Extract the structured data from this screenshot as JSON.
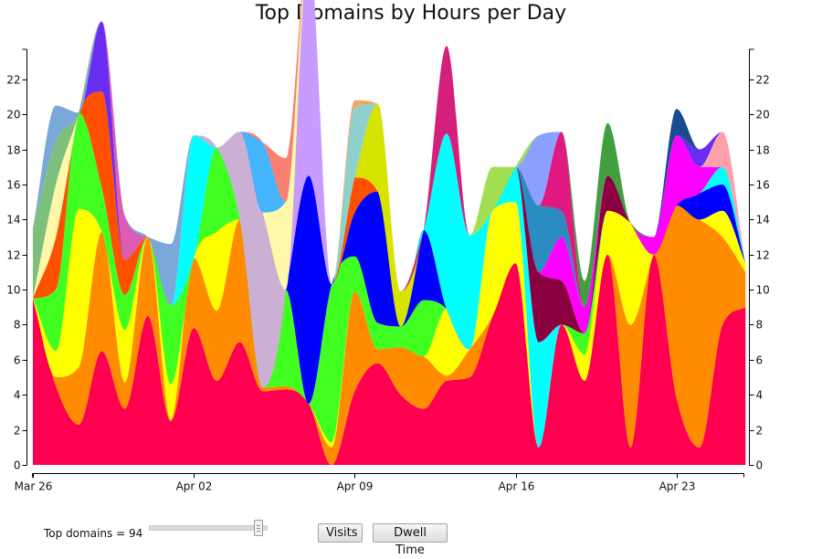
{
  "chart_data": {
    "type": "area",
    "title": "Top Domains by Hours per Day",
    "xlabel": "",
    "ylabel": "",
    "x_ticks": [
      "Mar 26",
      "Apr 02",
      "Apr 09",
      "Apr 16",
      "Apr 23"
    ],
    "x_range": [
      "Mar 26",
      "Apr 28"
    ],
    "y_ticks": [
      0,
      2,
      4,
      6,
      8,
      10,
      12,
      14,
      16,
      18,
      20,
      22
    ],
    "ylim": [
      0,
      23.5
    ],
    "y_axis_right": true,
    "grid": false,
    "legend": "none",
    "interpolation": "smooth",
    "x": [
      "Mar 26",
      "Mar 27",
      "Mar 28",
      "Mar 29",
      "Mar 30",
      "Mar 31",
      "Apr 01",
      "Apr 02",
      "Apr 03",
      "Apr 04",
      "Apr 05",
      "Apr 06",
      "Apr 07",
      "Apr 08",
      "Apr 09",
      "Apr 10",
      "Apr 11",
      "Apr 12",
      "Apr 13",
      "Apr 14",
      "Apr 15",
      "Apr 16",
      "Apr 17",
      "Apr 18",
      "Apr 19",
      "Apr 20",
      "Apr 21",
      "Apr 22",
      "Apr 23",
      "Apr 24",
      "Apr 25",
      "Apr 26"
    ],
    "series": [
      {
        "color": "#ff0050",
        "values": [
          9.5,
          4.5,
          2.3,
          6.5,
          3.2,
          8.5,
          2.5,
          7.8,
          4.8,
          7.0,
          4.2,
          4.3,
          3.5,
          0.0,
          4.2,
          5.8,
          4.0,
          3.2,
          4.8,
          5.0,
          8.5,
          11.5,
          1.0,
          8.0,
          4.8,
          12.0,
          1.0,
          12.0,
          3.8,
          1.0,
          8.0,
          9.0
        ]
      },
      {
        "color": "#ff8c00",
        "values": [
          0.0,
          0.5,
          3.3,
          6.8,
          1.5,
          4.5,
          0.1,
          4.0,
          4.0,
          7.0,
          0.2,
          0.2,
          0.0,
          1.0,
          5.7,
          0.8,
          2.7,
          3.0,
          0.3,
          1.6,
          0.0,
          0.0,
          0.0,
          0.0,
          0.0,
          0.0,
          7.0,
          0.0,
          11.0,
          13.0,
          5.0,
          2.0
        ]
      },
      {
        "color": "#ffff00",
        "values": [
          0.0,
          1.5,
          9.0,
          0.0,
          3.0,
          0.0,
          2.0,
          0.0,
          4.5,
          0.0,
          0.0,
          0.0,
          0.0,
          0.3,
          0.0,
          0.0,
          0.0,
          0.0,
          3.8,
          0.0,
          6.0,
          3.5,
          0.0,
          0.0,
          1.5,
          2.5,
          5.8,
          0.0,
          0.0,
          0.0,
          1.5,
          0.5
        ]
      },
      {
        "color": "#40ff20",
        "values": [
          0.0,
          3.5,
          5.5,
          2.5,
          2.0,
          0.0,
          4.5,
          0.0,
          4.8,
          0.0,
          0.0,
          5.5,
          0.0,
          9.0,
          2.0,
          1.5,
          1.2,
          3.2,
          0.0,
          0.0,
          0.0,
          0.0,
          0.0,
          0.0,
          1.2,
          0.0,
          0.0,
          0.0,
          0.0,
          0.0,
          0.0,
          0.0
        ]
      },
      {
        "color": "#0000ff",
        "values": [
          0.0,
          0.0,
          0.0,
          0.0,
          0.0,
          0.0,
          0.0,
          0.0,
          0.0,
          0.0,
          0.0,
          0.0,
          13.0,
          0.0,
          2.5,
          7.5,
          0.0,
          4.0,
          0.0,
          0.0,
          0.0,
          0.0,
          0.0,
          0.0,
          0.0,
          0.0,
          0.0,
          0.0,
          0.0,
          1.5,
          1.5,
          0.0
        ]
      },
      {
        "color": "#00ffff",
        "values": [
          0.0,
          0.0,
          0.0,
          0.0,
          0.0,
          0.0,
          0.0,
          7.0,
          0.0,
          0.0,
          0.0,
          0.0,
          0.0,
          0.0,
          0.0,
          0.0,
          0.0,
          0.0,
          10.0,
          6.5,
          0.0,
          2.0,
          6.0,
          0.0,
          0.0,
          0.0,
          0.0,
          0.0,
          0.0,
          0.0,
          1.0,
          0.0
        ]
      },
      {
        "color": "#c89cff",
        "values": [
          0.0,
          0.0,
          0.0,
          0.0,
          0.0,
          0.0,
          0.0,
          0.0,
          0.0,
          0.0,
          0.0,
          0.0,
          13.0,
          0.0,
          0.0,
          0.0,
          0.0,
          0.0,
          0.0,
          0.0,
          0.0,
          0.0,
          0.0,
          0.0,
          0.0,
          0.0,
          0.0,
          0.0,
          0.0,
          0.0,
          0.0,
          0.0
        ]
      },
      {
        "color": "#ccb0d4",
        "values": [
          0.0,
          0.0,
          0.0,
          0.0,
          0.0,
          0.0,
          0.0,
          0.0,
          0.0,
          5.0,
          10.0,
          0.0,
          0.0,
          0.0,
          0.0,
          0.0,
          0.0,
          0.0,
          0.0,
          0.0,
          0.0,
          0.0,
          0.0,
          0.0,
          0.0,
          0.0,
          0.0,
          0.0,
          0.0,
          0.0,
          0.0,
          0.0
        ]
      },
      {
        "color": "#8a0040",
        "values": [
          0.0,
          0.0,
          0.0,
          0.0,
          0.0,
          0.0,
          0.0,
          0.0,
          0.0,
          0.0,
          0.0,
          0.0,
          0.0,
          0.0,
          0.0,
          0.0,
          0.0,
          0.0,
          0.0,
          0.0,
          0.0,
          0.0,
          4.0,
          2.5,
          0.0,
          2.0,
          0.0,
          0.0,
          0.0,
          0.0,
          0.0,
          0.0
        ]
      },
      {
        "color": "#ff00ff",
        "values": [
          0.0,
          0.0,
          0.0,
          0.0,
          0.0,
          0.0,
          0.0,
          0.0,
          0.0,
          0.0,
          0.0,
          0.0,
          0.0,
          0.0,
          0.0,
          0.0,
          0.0,
          0.0,
          0.0,
          0.0,
          0.0,
          0.0,
          0.0,
          2.5,
          1.5,
          0.0,
          0.0,
          1.0,
          4.0,
          1.5,
          0.0,
          0.0
        ]
      },
      {
        "color": "#ffa0a8",
        "values": [
          0.0,
          0.0,
          0.0,
          0.0,
          0.0,
          0.0,
          0.0,
          0.0,
          0.0,
          0.0,
          0.0,
          0.0,
          0.0,
          0.0,
          0.0,
          0.0,
          0.0,
          0.0,
          0.0,
          0.0,
          0.0,
          0.0,
          0.0,
          0.0,
          0.0,
          0.0,
          0.0,
          0.0,
          0.0,
          0.0,
          2.0,
          0.0
        ]
      },
      {
        "color": "#2a8cc0",
        "values": [
          0.0,
          0.0,
          0.0,
          0.0,
          0.0,
          0.0,
          0.0,
          0.0,
          0.0,
          0.0,
          0.0,
          0.0,
          0.0,
          0.0,
          0.0,
          0.0,
          0.0,
          0.0,
          0.0,
          0.0,
          0.0,
          0.0,
          3.8,
          1.5,
          0.0,
          0.0,
          0.0,
          0.0,
          0.0,
          0.0,
          0.0,
          0.0
        ]
      },
      {
        "color": "#e01880",
        "values": [
          0.0,
          0.0,
          0.0,
          0.0,
          0.0,
          0.0,
          0.0,
          0.0,
          0.0,
          0.0,
          0.0,
          0.0,
          0.0,
          0.0,
          0.0,
          0.0,
          0.0,
          0.0,
          0.0,
          0.0,
          0.0,
          0.0,
          0.0,
          4.5,
          0.0,
          0.0,
          0.0,
          0.0,
          0.0,
          0.0,
          0.0,
          0.0
        ]
      },
      {
        "color": "#ff5000",
        "values": [
          0.0,
          3.0,
          0.0,
          5.5,
          2.0,
          0.0,
          0.0,
          0.0,
          0.0,
          0.0,
          0.0,
          0.0,
          0.0,
          0.0,
          2.0,
          0.0,
          0.0,
          0.0,
          0.0,
          0.0,
          0.0,
          0.0,
          0.0,
          0.0,
          0.0,
          0.0,
          0.0,
          0.0,
          0.0,
          0.0,
          0.0,
          0.0
        ]
      },
      {
        "color": "#6a2cf0",
        "values": [
          0.0,
          0.0,
          0.0,
          4.0,
          0.0,
          0.0,
          0.0,
          0.0,
          0.0,
          0.0,
          0.0,
          0.0,
          0.0,
          0.0,
          0.0,
          0.0,
          0.0,
          0.0,
          0.0,
          0.0,
          0.0,
          0.0,
          0.0,
          0.0,
          0.0,
          0.0,
          0.0,
          0.0,
          0.0,
          1.0,
          0.0,
          0.0
        ]
      },
      {
        "color": "#d6e400",
        "values": [
          0.0,
          0.0,
          0.0,
          0.0,
          0.0,
          0.0,
          0.0,
          0.0,
          0.0,
          0.0,
          0.0,
          0.0,
          0.0,
          0.0,
          0.0,
          5.0,
          2.0,
          0.0,
          0.0,
          0.0,
          0.0,
          0.0,
          0.0,
          0.0,
          0.0,
          0.0,
          0.0,
          0.0,
          0.0,
          0.0,
          0.0,
          0.0
        ]
      },
      {
        "color": "#d4207c",
        "values": [
          0.0,
          0.0,
          0.0,
          0.0,
          0.0,
          0.0,
          0.0,
          0.0,
          0.0,
          0.0,
          0.0,
          0.0,
          0.0,
          0.0,
          0.0,
          0.0,
          0.0,
          0.0,
          5.0,
          0.0,
          0.0,
          0.0,
          0.0,
          0.0,
          0.0,
          0.0,
          0.0,
          0.0,
          0.0,
          0.0,
          0.0,
          0.0
        ]
      },
      {
        "color": "#40a040",
        "values": [
          0.0,
          0.0,
          0.0,
          0.0,
          0.0,
          0.0,
          0.0,
          0.0,
          0.0,
          0.0,
          0.0,
          0.0,
          0.0,
          0.0,
          0.0,
          0.0,
          0.0,
          0.0,
          0.0,
          0.0,
          0.0,
          0.0,
          0.0,
          0.0,
          1.5,
          3.0,
          0.0,
          0.0,
          0.0,
          0.0,
          0.0,
          0.0
        ]
      },
      {
        "color": "#8ca0ff",
        "values": [
          0.0,
          0.0,
          0.0,
          0.0,
          0.0,
          0.0,
          0.0,
          0.0,
          0.0,
          0.0,
          0.0,
          0.0,
          0.0,
          0.0,
          0.0,
          0.0,
          0.0,
          0.0,
          0.0,
          0.0,
          0.0,
          0.0,
          4.0,
          0.0,
          0.0,
          0.0,
          0.0,
          0.0,
          0.0,
          0.0,
          0.0,
          0.0
        ]
      },
      {
        "color": "#dc5cb4",
        "values": [
          0.0,
          0.0,
          0.0,
          0.0,
          2.5,
          0.0,
          0.0,
          0.0,
          0.0,
          0.0,
          0.0,
          0.0,
          0.0,
          0.0,
          0.0,
          0.0,
          0.0,
          0.0,
          0.0,
          0.0,
          0.0,
          0.0,
          0.0,
          0.0,
          0.0,
          0.0,
          0.0,
          0.0,
          0.0,
          0.0,
          0.0,
          0.0
        ]
      },
      {
        "color": "#fff8a8",
        "values": [
          0.0,
          3.0,
          0.0,
          0.0,
          0.0,
          0.0,
          0.0,
          0.0,
          0.0,
          0.0,
          0.0,
          5.0,
          0.0,
          0.0,
          0.0,
          0.0,
          0.0,
          0.0,
          0.0,
          0.0,
          0.0,
          0.0,
          0.0,
          0.0,
          0.0,
          0.0,
          0.0,
          0.0,
          0.0,
          0.0,
          0.0,
          0.0
        ]
      },
      {
        "color": "#7cc07c",
        "values": [
          4.0,
          2.5,
          0.0,
          0.0,
          0.0,
          0.0,
          0.0,
          0.0,
          0.0,
          0.0,
          0.0,
          0.0,
          0.0,
          0.0,
          0.0,
          0.0,
          0.0,
          0.0,
          0.0,
          0.0,
          0.0,
          0.0,
          0.0,
          0.0,
          0.0,
          0.0,
          0.0,
          0.0,
          0.0,
          0.0,
          0.0,
          0.0
        ]
      },
      {
        "color": "#7aa8d8",
        "values": [
          0.0,
          2.0,
          0.0,
          0.0,
          0.0,
          0.0,
          3.5,
          0.0,
          0.0,
          0.0,
          0.0,
          0.0,
          0.0,
          0.0,
          0.0,
          0.0,
          0.0,
          0.0,
          0.0,
          0.0,
          0.0,
          0.0,
          0.0,
          0.0,
          0.0,
          0.0,
          0.0,
          0.0,
          0.0,
          0.0,
          0.0,
          0.0
        ]
      },
      {
        "color": "#1a4a90",
        "values": [
          0.0,
          0.0,
          0.0,
          0.0,
          0.0,
          0.0,
          0.0,
          0.0,
          0.0,
          0.0,
          0.0,
          0.0,
          0.0,
          0.0,
          0.0,
          0.0,
          0.0,
          0.0,
          0.0,
          0.0,
          0.0,
          0.0,
          0.0,
          0.0,
          0.0,
          0.0,
          0.0,
          0.0,
          1.5,
          0.0,
          0.0,
          0.0
        ]
      },
      {
        "color": "#a0e050",
        "values": [
          0.0,
          0.0,
          0.0,
          0.0,
          0.0,
          0.0,
          0.0,
          0.0,
          0.0,
          0.0,
          0.0,
          0.0,
          0.0,
          0.0,
          0.0,
          0.0,
          0.0,
          0.0,
          0.0,
          0.0,
          2.5,
          0.0,
          0.0,
          0.0,
          0.0,
          0.0,
          0.0,
          0.0,
          0.0,
          0.0,
          0.0,
          0.0
        ]
      },
      {
        "color": "#44b4ff",
        "values": [
          0.0,
          0.0,
          0.0,
          0.0,
          0.0,
          0.0,
          0.0,
          0.0,
          0.0,
          0.0,
          4.0,
          0.0,
          0.0,
          0.0,
          0.0,
          0.0,
          0.0,
          0.0,
          0.0,
          0.0,
          0.0,
          0.0,
          0.0,
          0.0,
          0.0,
          0.0,
          0.0,
          0.0,
          0.0,
          0.0,
          0.0,
          0.0
        ]
      },
      {
        "color": "#8ed0cc",
        "values": [
          0.0,
          0.0,
          0.0,
          0.0,
          0.0,
          0.0,
          0.0,
          0.0,
          0.0,
          0.0,
          0.0,
          0.0,
          0.0,
          0.0,
          4.0,
          0.0,
          0.0,
          0.0,
          0.0,
          0.0,
          0.0,
          0.0,
          0.0,
          0.0,
          0.0,
          0.0,
          0.0,
          0.0,
          0.0,
          0.0,
          0.0,
          0.0
        ]
      },
      {
        "color": "#fa8072",
        "values": [
          0.0,
          0.0,
          0.0,
          0.0,
          0.0,
          0.0,
          0.0,
          0.0,
          0.0,
          0.0,
          0.0,
          2.5,
          0.0,
          0.0,
          0.0,
          0.0,
          0.0,
          0.0,
          0.0,
          0.0,
          0.0,
          0.0,
          0.0,
          0.0,
          0.0,
          0.0,
          0.0,
          0.0,
          0.0,
          0.0,
          0.0,
          0.0
        ]
      },
      {
        "color": "#f4a460",
        "values": [
          0.0,
          0.0,
          0.0,
          0.0,
          0.0,
          0.0,
          0.0,
          0.0,
          0.0,
          0.0,
          0.0,
          0.0,
          0.0,
          0.0,
          0.4,
          0.0,
          0.0,
          0.0,
          0.0,
          0.0,
          0.0,
          0.0,
          0.0,
          0.0,
          0.0,
          0.0,
          0.0,
          0.0,
          0.0,
          0.0,
          0.0,
          0.0
        ]
      }
    ]
  },
  "controls": {
    "slider_label": "Top domains = 94",
    "slider_value_fraction": 0.93,
    "visits_label": "Visits",
    "dwell_time_label": "Dwell Time"
  }
}
